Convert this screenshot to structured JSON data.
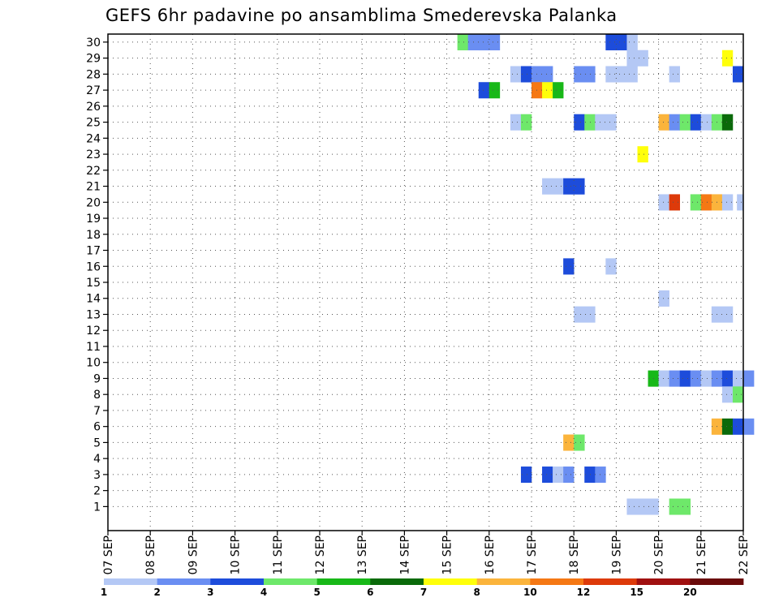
{
  "chart_data": {
    "type": "heatmap",
    "title": "GEFS 6hr padavine po ansamblima Smederevska Palanka",
    "xlabel": "",
    "ylabel": "",
    "x_tick_labels": [
      "07 SEP",
      "08 SEP",
      "09 SEP",
      "10 SEP",
      "11 SEP",
      "12 SEP",
      "13 SEP",
      "14 SEP",
      "15 SEP",
      "16 SEP",
      "17 SEP",
      "18 SEP",
      "19 SEP",
      "20 SEP",
      "21 SEP",
      "22 SEP"
    ],
    "x_range_days": [
      0,
      15
    ],
    "y_range": [
      0,
      30
    ],
    "y_tick_labels": [
      "1",
      "2",
      "3",
      "4",
      "5",
      "6",
      "7",
      "8",
      "9",
      "10",
      "11",
      "12",
      "13",
      "14",
      "15",
      "16",
      "17",
      "18",
      "19",
      "20",
      "21",
      "22",
      "23",
      "24",
      "25",
      "26",
      "27",
      "28",
      "29",
      "30"
    ],
    "grid": true,
    "colorbar": {
      "colors": [
        "#b4c8f5",
        "#6a8ef2",
        "#1d4cdb",
        "#6ee86a",
        "#18b818",
        "#0a6a0a",
        "#ffff0a",
        "#fbb43c",
        "#f57814",
        "#dd3a0a",
        "#a01010",
        "#6a0a0a"
      ],
      "tick_labels": [
        "1",
        "2",
        "3",
        "4",
        "5",
        "6",
        "7",
        "8",
        "10",
        "12",
        "15",
        "20"
      ]
    },
    "cells": [
      {
        "member": 30,
        "day": 8.25,
        "span": 0.25,
        "color": "#6ee86a"
      },
      {
        "member": 30,
        "day": 8.5,
        "span": 0.5,
        "color": "#6a8ef2"
      },
      {
        "member": 30,
        "day": 8.75,
        "span": 0.25,
        "color": "#6a8ef2"
      },
      {
        "member": 30,
        "day": 9.0,
        "span": 0.25,
        "color": "#6a8ef2"
      },
      {
        "member": 30,
        "day": 11.75,
        "span": 0.25,
        "color": "#1d4cdb"
      },
      {
        "member": 30,
        "day": 12.0,
        "span": 0.25,
        "color": "#1d4cdb"
      },
      {
        "member": 30,
        "day": 12.25,
        "span": 0.25,
        "color": "#b4c8f5"
      },
      {
        "member": 29,
        "day": 12.25,
        "span": 0.5,
        "color": "#b4c8f5"
      },
      {
        "member": 29,
        "day": 14.5,
        "span": 0.25,
        "color": "#ffff0a"
      },
      {
        "member": 28,
        "day": 9.5,
        "span": 0.25,
        "color": "#b4c8f5"
      },
      {
        "member": 28,
        "day": 9.75,
        "span": 0.25,
        "color": "#1d4cdb"
      },
      {
        "member": 28,
        "day": 10.0,
        "span": 0.5,
        "color": "#6a8ef2"
      },
      {
        "member": 28,
        "day": 11.0,
        "span": 0.25,
        "color": "#6a8ef2"
      },
      {
        "member": 28,
        "day": 11.25,
        "span": 0.25,
        "color": "#6a8ef2"
      },
      {
        "member": 28,
        "day": 11.75,
        "span": 0.75,
        "color": "#b4c8f5"
      },
      {
        "member": 28,
        "day": 13.25,
        "span": 0.25,
        "color": "#b4c8f5"
      },
      {
        "member": 28,
        "day": 14.75,
        "span": 0.25,
        "color": "#1d4cdb"
      },
      {
        "member": 27,
        "day": 8.75,
        "span": 0.25,
        "color": "#1d4cdb"
      },
      {
        "member": 27,
        "day": 9.0,
        "span": 0.25,
        "color": "#18b818"
      },
      {
        "member": 27,
        "day": 10.0,
        "span": 0.25,
        "color": "#f57814"
      },
      {
        "member": 27,
        "day": 10.25,
        "span": 0.25,
        "color": "#ffff0a"
      },
      {
        "member": 27,
        "day": 10.5,
        "span": 0.25,
        "color": "#18b818"
      },
      {
        "member": 25,
        "day": 9.5,
        "span": 0.25,
        "color": "#b4c8f5"
      },
      {
        "member": 25,
        "day": 9.75,
        "span": 0.25,
        "color": "#6ee86a"
      },
      {
        "member": 25,
        "day": 11.0,
        "span": 0.25,
        "color": "#1d4cdb"
      },
      {
        "member": 25,
        "day": 11.25,
        "span": 0.25,
        "color": "#6ee86a"
      },
      {
        "member": 25,
        "day": 11.5,
        "span": 0.5,
        "color": "#b4c8f5"
      },
      {
        "member": 25,
        "day": 13.0,
        "span": 0.25,
        "color": "#fbb43c"
      },
      {
        "member": 25,
        "day": 13.25,
        "span": 0.25,
        "color": "#6a8ef2"
      },
      {
        "member": 25,
        "day": 13.5,
        "span": 0.25,
        "color": "#6ee86a"
      },
      {
        "member": 25,
        "day": 13.75,
        "span": 0.25,
        "color": "#1d4cdb"
      },
      {
        "member": 25,
        "day": 14.0,
        "span": 0.25,
        "color": "#b4c8f5"
      },
      {
        "member": 25,
        "day": 14.25,
        "span": 0.25,
        "color": "#6ee86a"
      },
      {
        "member": 25,
        "day": 14.5,
        "span": 0.25,
        "color": "#0a6a0a"
      },
      {
        "member": 23,
        "day": 12.5,
        "span": 0.25,
        "color": "#ffff0a"
      },
      {
        "member": 21,
        "day": 10.25,
        "span": 0.5,
        "color": "#b4c8f5"
      },
      {
        "member": 21,
        "day": 10.75,
        "span": 0.5,
        "color": "#1d4cdb"
      },
      {
        "member": 20,
        "day": 13.0,
        "span": 0.25,
        "color": "#b4c8f5"
      },
      {
        "member": 20,
        "day": 13.25,
        "span": 0.25,
        "color": "#dd3a0a"
      },
      {
        "member": 20,
        "day": 13.75,
        "span": 0.25,
        "color": "#6ee86a"
      },
      {
        "member": 20,
        "day": 14.0,
        "span": 0.25,
        "color": "#f57814"
      },
      {
        "member": 20,
        "day": 14.25,
        "span": 0.25,
        "color": "#fbb43c"
      },
      {
        "member": 20,
        "day": 14.5,
        "span": 0.25,
        "color": "#b4c8f5"
      },
      {
        "member": 20,
        "day": 14.85,
        "span": 0.15,
        "color": "#b4c8f5"
      },
      {
        "member": 16,
        "day": 10.75,
        "span": 0.25,
        "color": "#1d4cdb"
      },
      {
        "member": 16,
        "day": 11.75,
        "span": 0.25,
        "color": "#b4c8f5"
      },
      {
        "member": 14,
        "day": 13.0,
        "span": 0.25,
        "color": "#b4c8f5"
      },
      {
        "member": 13,
        "day": 11.0,
        "span": 0.5,
        "color": "#b4c8f5"
      },
      {
        "member": 13,
        "day": 14.25,
        "span": 0.5,
        "color": "#b4c8f5"
      },
      {
        "member": 9,
        "day": 12.75,
        "span": 0.25,
        "color": "#18b818"
      },
      {
        "member": 9,
        "day": 13.0,
        "span": 0.25,
        "color": "#b4c8f5"
      },
      {
        "member": 9,
        "day": 13.25,
        "span": 0.25,
        "color": "#6a8ef2"
      },
      {
        "member": 9,
        "day": 13.5,
        "span": 0.25,
        "color": "#1d4cdb"
      },
      {
        "member": 9,
        "day": 13.75,
        "span": 0.25,
        "color": "#6a8ef2"
      },
      {
        "member": 9,
        "day": 14.0,
        "span": 0.25,
        "color": "#b4c8f5"
      },
      {
        "member": 9,
        "day": 14.25,
        "span": 0.25,
        "color": "#6a8ef2"
      },
      {
        "member": 9,
        "day": 14.5,
        "span": 0.25,
        "color": "#1d4cdb"
      },
      {
        "member": 9,
        "day": 14.75,
        "span": 0.25,
        "color": "#b4c8f5"
      },
      {
        "member": 9,
        "day": 15.0,
        "span": 0.25,
        "color": "#6a8ef2"
      },
      {
        "member": 8,
        "day": 14.5,
        "span": 0.25,
        "color": "#b4c8f5"
      },
      {
        "member": 8,
        "day": 14.75,
        "span": 0.25,
        "color": "#6ee86a"
      },
      {
        "member": 6,
        "day": 14.25,
        "span": 0.25,
        "color": "#fbb43c"
      },
      {
        "member": 6,
        "day": 14.5,
        "span": 0.25,
        "color": "#0a6a0a"
      },
      {
        "member": 6,
        "day": 14.75,
        "span": 0.25,
        "color": "#1d4cdb"
      },
      {
        "member": 6,
        "day": 15.0,
        "span": 0.25,
        "color": "#6a8ef2"
      },
      {
        "member": 5,
        "day": 10.75,
        "span": 0.25,
        "color": "#fbb43c"
      },
      {
        "member": 5,
        "day": 11.0,
        "span": 0.25,
        "color": "#6ee86a"
      },
      {
        "member": 3,
        "day": 9.75,
        "span": 0.25,
        "color": "#1d4cdb"
      },
      {
        "member": 3,
        "day": 10.25,
        "span": 0.25,
        "color": "#1d4cdb"
      },
      {
        "member": 3,
        "day": 10.5,
        "span": 0.25,
        "color": "#b4c8f5"
      },
      {
        "member": 3,
        "day": 10.75,
        "span": 0.25,
        "color": "#6a8ef2"
      },
      {
        "member": 3,
        "day": 11.25,
        "span": 0.25,
        "color": "#1d4cdb"
      },
      {
        "member": 3,
        "day": 11.5,
        "span": 0.25,
        "color": "#6a8ef2"
      },
      {
        "member": 1,
        "day": 12.25,
        "span": 0.75,
        "color": "#b4c8f5"
      },
      {
        "member": 1,
        "day": 13.25,
        "span": 0.5,
        "color": "#6ee86a"
      }
    ]
  }
}
